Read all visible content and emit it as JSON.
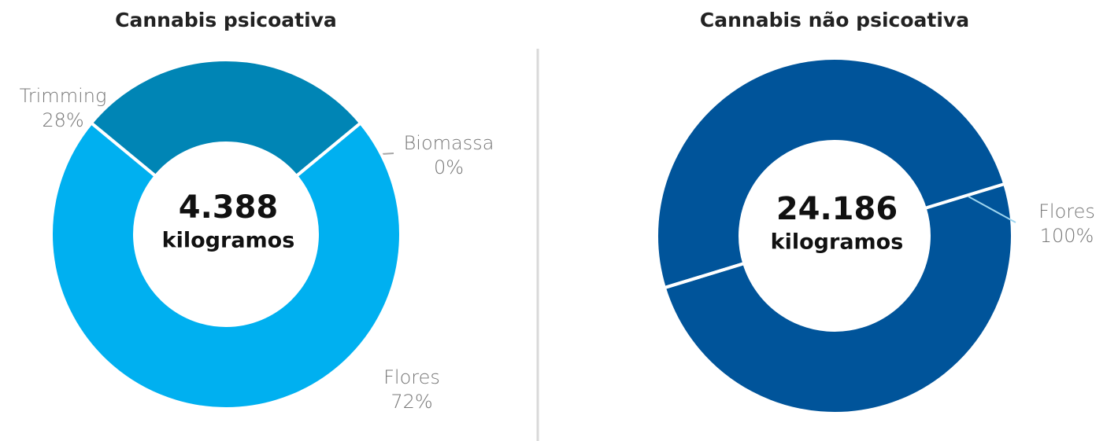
{
  "chart_data": [
    {
      "type": "donut",
      "title": "Cannabis psicoativa",
      "categories": [
        "Trimming",
        "Biomassa",
        "Flores"
      ],
      "values": [
        28,
        0,
        72
      ],
      "value_labels": [
        "28%",
        "0%",
        "72%"
      ],
      "colors": [
        "#0085b5",
        "#a6a6a6",
        "#00b0f0"
      ],
      "center_value": "4.388",
      "center_label": "kilogramos"
    },
    {
      "type": "donut",
      "title": "Cannabis não psicoativa",
      "categories": [
        "Flores"
      ],
      "values": [
        100
      ],
      "value_labels": [
        "100%"
      ],
      "colors": [
        "#00549a"
      ],
      "center_value": "24.186",
      "center_label": "kilogramos"
    }
  ]
}
